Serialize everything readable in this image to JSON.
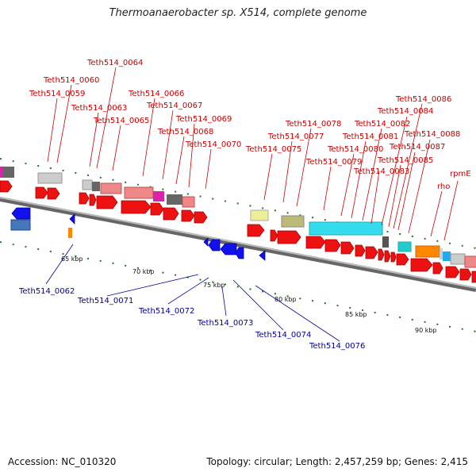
{
  "title": "Thermoanaerobacter sp. X514, complete genome",
  "footer": {
    "accession": "Accession: NC_010320",
    "topology": "Topology: circular; Length: 2,457,259 bp; Genes: 2,415"
  },
  "scale_labels": [
    "65 kbp",
    "70 kbp",
    "75 kbp",
    "80 kbp",
    "85 kbp",
    "90 kbp"
  ],
  "forward_genes": [
    "Teth514_0059",
    "Teth514_0060",
    "Teth514_0063",
    "Teth514_0064",
    "Teth514_0065",
    "Teth514_0066",
    "Teth514_0067",
    "Teth514_0068",
    "Teth514_0069",
    "Teth514_0070",
    "Teth514_0075",
    "Teth514_0077",
    "Teth514_0078",
    "Teth514_0079",
    "Teth514_0080",
    "Teth514_0081",
    "Teth514_0082",
    "Teth514_0083",
    "Teth514_0084",
    "Teth514_0085",
    "Teth514_0086",
    "Teth514_0087",
    "Teth514_0088",
    "rho",
    "rpmE"
  ],
  "reverse_genes": [
    "Teth514_0062",
    "Teth514_0071",
    "Teth514_0072",
    "Teth514_0073",
    "Teth514_0074",
    "Teth514_0076"
  ],
  "colors": {
    "forward_label": "#cc0000",
    "reverse_label": "#000099",
    "forward_cds": "#ee1111",
    "reverse_cds": "#1111ee",
    "backbone": "#999999",
    "tick": "#227722"
  }
}
